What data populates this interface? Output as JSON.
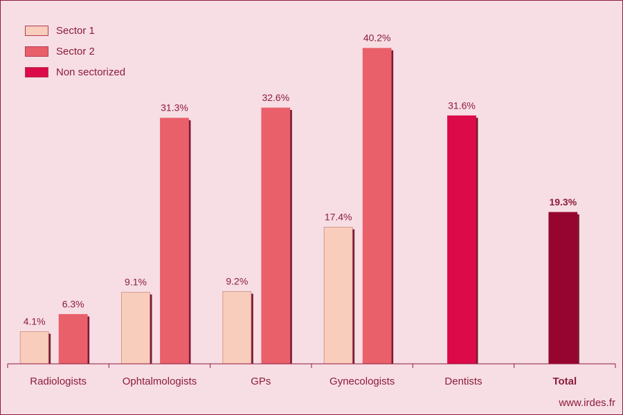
{
  "chart_data": {
    "type": "bar",
    "categories": [
      "Radiologists",
      "Ophtalmologists",
      "GPs",
      "Gynecologists",
      "Dentists",
      "Total"
    ],
    "series": [
      {
        "name": "Sector 1",
        "values": [
          4.1,
          9.1,
          9.2,
          17.4,
          null,
          null
        ]
      },
      {
        "name": "Sector 2",
        "values": [
          6.3,
          31.3,
          32.6,
          40.2,
          null,
          null
        ]
      },
      {
        "name": "Non sectorized",
        "values": [
          null,
          null,
          null,
          null,
          31.6,
          null
        ]
      },
      {
        "name": "",
        "values": [
          null,
          null,
          null,
          null,
          null,
          19.3
        ]
      }
    ],
    "value_labels": [
      [
        "4.1%",
        "9.1%",
        "9.2%",
        "17.4%",
        null,
        null
      ],
      [
        "6.3%",
        "31.3%",
        "32.6%",
        "40.2%",
        null,
        null
      ],
      [
        null,
        null,
        null,
        null,
        "31.6%",
        null
      ],
      [
        null,
        null,
        null,
        null,
        null,
        "19.3%"
      ]
    ],
    "ylim": [
      0,
      45
    ],
    "grid": false,
    "legend_position": "top-left",
    "colors": {
      "sector1": "#f9cdbc",
      "sector2": "#e9606a",
      "non_sectorized": "#dc0a48",
      "total": "#960530",
      "text": "#8c1b3c",
      "background": "#f7dee4"
    }
  },
  "legend": [
    {
      "label": "Sector 1",
      "color": "#f9cdbc"
    },
    {
      "label": "Sector 2",
      "color": "#e9606a"
    },
    {
      "label": "Non sectorized",
      "color": "#dc0a48"
    }
  ],
  "credit": "www.irdes.fr"
}
